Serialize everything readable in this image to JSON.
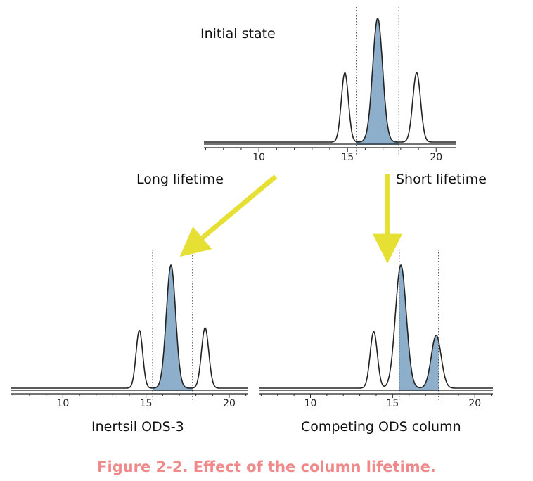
{
  "caption": "Figure 2-2. Effect of the column lifetime.",
  "arrows": {
    "left_label": "Long lifetime",
    "right_label": "Short lifetime",
    "color": "#e6e034"
  },
  "colors": {
    "fill": "#8eafcb",
    "line": "#222222",
    "caption": "#f08a8a"
  },
  "chart_data": [
    {
      "id": "initial",
      "type": "line",
      "title": "Initial state",
      "xlim": [
        6.9,
        21.1
      ],
      "xticks": [
        10,
        15,
        20
      ],
      "ylim": [
        0,
        1
      ],
      "fraction_window": [
        15.5,
        17.9
      ],
      "peaks": [
        {
          "x": 14.85,
          "height": 0.56,
          "width": 0.2
        },
        {
          "x": 16.7,
          "height": 1.0,
          "width": 0.28,
          "clipped": true
        },
        {
          "x": 18.9,
          "height": 0.56,
          "width": 0.22
        }
      ]
    },
    {
      "id": "inertsil",
      "type": "line",
      "title": "Inertsil ODS-3",
      "xlim": [
        6.9,
        21.1
      ],
      "xticks": [
        10,
        15,
        20
      ],
      "ylim": [
        0,
        1
      ],
      "fraction_window": [
        15.4,
        17.8
      ],
      "peaks": [
        {
          "x": 14.6,
          "height": 0.47,
          "width": 0.2
        },
        {
          "x": 16.5,
          "height": 1.0,
          "width": 0.28,
          "clipped": true
        },
        {
          "x": 18.55,
          "height": 0.49,
          "width": 0.22
        }
      ]
    },
    {
      "id": "competing",
      "type": "line",
      "title": "Competing ODS column",
      "xlim": [
        6.9,
        21.1
      ],
      "xticks": [
        10,
        15,
        20
      ],
      "ylim": [
        0,
        1
      ],
      "fraction_window": [
        15.4,
        17.8
      ],
      "peaks": [
        {
          "x": 13.85,
          "height": 0.46,
          "width": 0.22
        },
        {
          "x": 15.5,
          "height": 1.0,
          "width": 0.33,
          "clipped": true
        },
        {
          "x": 17.65,
          "height": 0.43,
          "width": 0.3
        }
      ]
    }
  ]
}
